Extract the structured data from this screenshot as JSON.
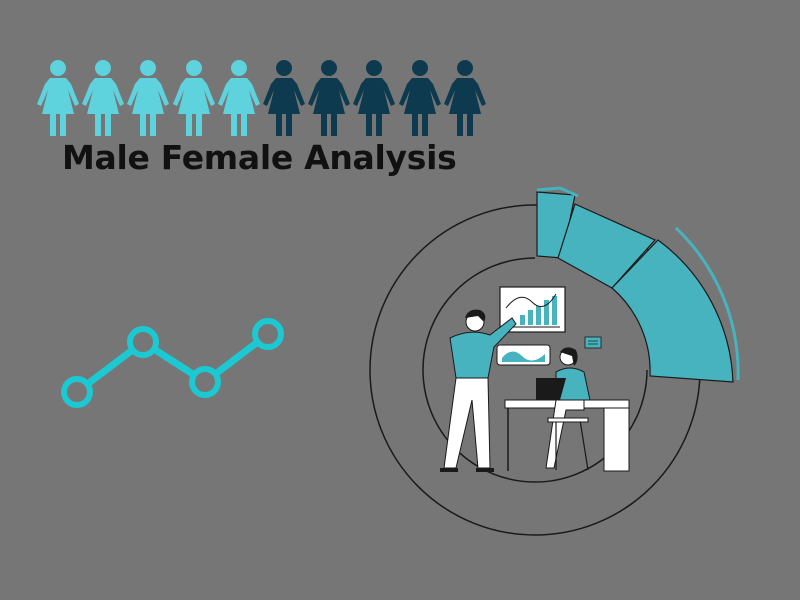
{
  "title": "Male Female Analysis",
  "people": {
    "light_count": 5,
    "dark_count": 5,
    "light_color": "#5ed3dd",
    "dark_color": "#0d3a4e",
    "icon": "female-figure-icon"
  },
  "colors": {
    "background": "#767676",
    "accent": "#1cc8d2",
    "teal_ring": "#47b3be",
    "title": "#111111"
  },
  "line_graphic": {
    "icon": "trend-line-icon",
    "values": [
      1,
      3,
      1.5,
      3.5
    ]
  },
  "illustration": {
    "icon": "data-analysis-scene-icon",
    "figures": [
      "man-presenting-icon",
      "woman-at-laptop-icon",
      "chart-board-icon",
      "wave-chart-card-icon",
      "message-icon"
    ]
  }
}
